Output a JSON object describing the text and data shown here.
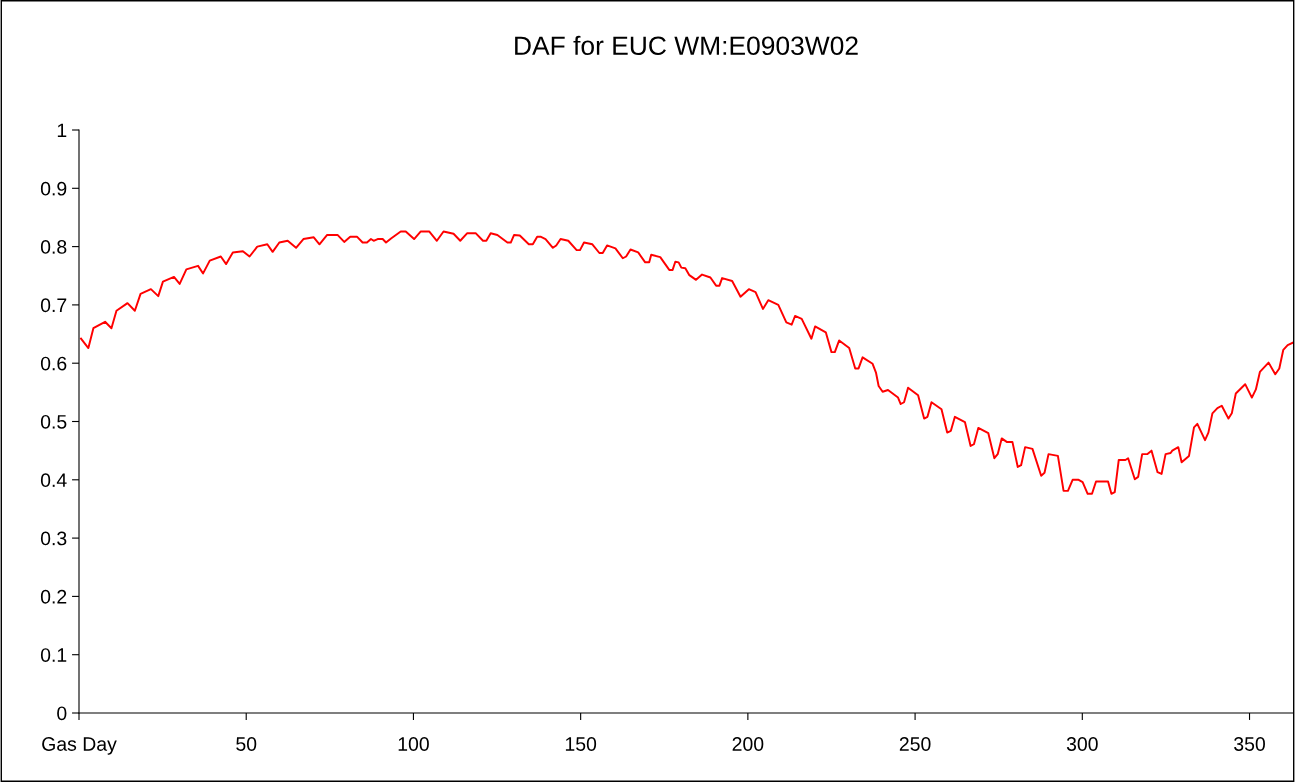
{
  "chart_data": {
    "type": "line",
    "title": "DAF for EUC WM:E0903W02",
    "xlim": [
      0,
      363
    ],
    "xticks": [
      {
        "value": 0,
        "label": "Gas Day"
      },
      50,
      100,
      150,
      200,
      250,
      300,
      350
    ],
    "ylim": [
      0,
      1
    ],
    "yticks": [
      0,
      0.1,
      0.2,
      0.3,
      0.4,
      0.5,
      0.6,
      0.7,
      0.8,
      0.9,
      1
    ],
    "grid": false,
    "legend": false,
    "marker": "none",
    "line_style": "solid",
    "series": [
      {
        "color": "#ff0000",
        "x": [
          0.6,
          2.8,
          4.3,
          7.8,
          9.7,
          11.2,
          14.5,
          16.7,
          18.4,
          21.5,
          23.7,
          25.1,
          28.4,
          30.1,
          32.1,
          35.6,
          37.1,
          39.1,
          42.4,
          44.0,
          46.0,
          49.0,
          51.0,
          53.3,
          56.3,
          57.9,
          59.9,
          62.4,
          64.9,
          67.1,
          70.2,
          71.9,
          74.2,
          77.3,
          79.3,
          81.1,
          83.1,
          84.8,
          86.1,
          87.3,
          88.1,
          89.3,
          90.8,
          91.8,
          93.3,
          96.2,
          97.7,
          100.2,
          102.2,
          104.7,
          107.0,
          109.0,
          112.0,
          114.0,
          116.1,
          118.6,
          120.8,
          121.8,
          123.1,
          125.1,
          128.1,
          129.1,
          130.1,
          131.8,
          134.5,
          135.7,
          137.0,
          138.0,
          139.5,
          141.7,
          142.7,
          144.0,
          146.3,
          148.8,
          149.8,
          151.0,
          153.5,
          155.6,
          156.6,
          157.9,
          160.4,
          162.6,
          163.6,
          164.9,
          167.2,
          169.3,
          170.5,
          171.1,
          173.8,
          176.5,
          177.5,
          178.3,
          179.3,
          180.1,
          181.3,
          182.5,
          184.5,
          186.3,
          188.8,
          190.5,
          191.5,
          192.3,
          195.3,
          197.8,
          200.3,
          202.3,
          204.5,
          206.1,
          209.1,
          211.5,
          213.1,
          214.1,
          216.1,
          219.0,
          220.1,
          223.3,
          225.0,
          226.0,
          227.3,
          230.3,
          232.1,
          233.1,
          234.3,
          237.3,
          238.3,
          239.1,
          240.3,
          241.9,
          244.9,
          245.7,
          246.7,
          247.9,
          250.9,
          252.7,
          253.7,
          254.9,
          257.9,
          259.6,
          260.7,
          261.9,
          264.9,
          266.6,
          267.6,
          268.9,
          271.9,
          273.7,
          274.7,
          275.9,
          277.4,
          279.1,
          280.7,
          281.7,
          282.9,
          285.1,
          287.7,
          288.7,
          289.9,
          292.7,
          294.4,
          295.7,
          297.1,
          298.9,
          300.1,
          301.6,
          302.9,
          304.1,
          307.7,
          308.7,
          309.7,
          310.9,
          312.9,
          313.7,
          315.7,
          316.7,
          317.9,
          319.4,
          320.7,
          322.5,
          323.7,
          324.9,
          326.4,
          326.9,
          328.7,
          329.7,
          331.9,
          333.4,
          334.4,
          336.7,
          337.7,
          338.9,
          340.4,
          341.7,
          343.7,
          344.7,
          345.9,
          348.7,
          350.7,
          351.9,
          353.1,
          355.7,
          357.7,
          358.9,
          360.1,
          361.4,
          362.9
        ],
        "values": [
          0.642,
          0.626,
          0.66,
          0.671,
          0.66,
          0.69,
          0.703,
          0.69,
          0.719,
          0.727,
          0.715,
          0.74,
          0.748,
          0.736,
          0.761,
          0.767,
          0.754,
          0.776,
          0.783,
          0.77,
          0.79,
          0.792,
          0.783,
          0.8,
          0.804,
          0.791,
          0.807,
          0.81,
          0.798,
          0.813,
          0.816,
          0.804,
          0.82,
          0.82,
          0.808,
          0.817,
          0.817,
          0.807,
          0.807,
          0.813,
          0.81,
          0.813,
          0.813,
          0.807,
          0.814,
          0.826,
          0.826,
          0.813,
          0.826,
          0.826,
          0.81,
          0.826,
          0.822,
          0.81,
          0.823,
          0.823,
          0.81,
          0.81,
          0.823,
          0.82,
          0.807,
          0.807,
          0.82,
          0.819,
          0.804,
          0.804,
          0.817,
          0.817,
          0.813,
          0.798,
          0.802,
          0.813,
          0.81,
          0.794,
          0.794,
          0.807,
          0.804,
          0.789,
          0.789,
          0.802,
          0.797,
          0.78,
          0.783,
          0.795,
          0.79,
          0.773,
          0.773,
          0.786,
          0.782,
          0.76,
          0.76,
          0.774,
          0.773,
          0.764,
          0.763,
          0.751,
          0.743,
          0.752,
          0.747,
          0.733,
          0.733,
          0.746,
          0.741,
          0.714,
          0.727,
          0.722,
          0.693,
          0.708,
          0.7,
          0.67,
          0.666,
          0.681,
          0.676,
          0.642,
          0.663,
          0.653,
          0.619,
          0.619,
          0.639,
          0.626,
          0.591,
          0.591,
          0.61,
          0.599,
          0.584,
          0.561,
          0.551,
          0.554,
          0.541,
          0.53,
          0.533,
          0.558,
          0.545,
          0.505,
          0.508,
          0.533,
          0.521,
          0.481,
          0.484,
          0.508,
          0.499,
          0.458,
          0.461,
          0.489,
          0.48,
          0.437,
          0.444,
          0.471,
          0.465,
          0.465,
          0.422,
          0.425,
          0.456,
          0.453,
          0.407,
          0.412,
          0.444,
          0.441,
          0.381,
          0.381,
          0.4,
          0.4,
          0.396,
          0.376,
          0.376,
          0.397,
          0.397,
          0.376,
          0.379,
          0.434,
          0.434,
          0.437,
          0.401,
          0.405,
          0.444,
          0.444,
          0.45,
          0.413,
          0.41,
          0.444,
          0.446,
          0.45,
          0.456,
          0.43,
          0.441,
          0.49,
          0.496,
          0.468,
          0.481,
          0.514,
          0.523,
          0.527,
          0.505,
          0.514,
          0.548,
          0.564,
          0.541,
          0.555,
          0.585,
          0.601,
          0.581,
          0.591,
          0.623,
          0.631,
          0.635
        ]
      }
    ]
  }
}
